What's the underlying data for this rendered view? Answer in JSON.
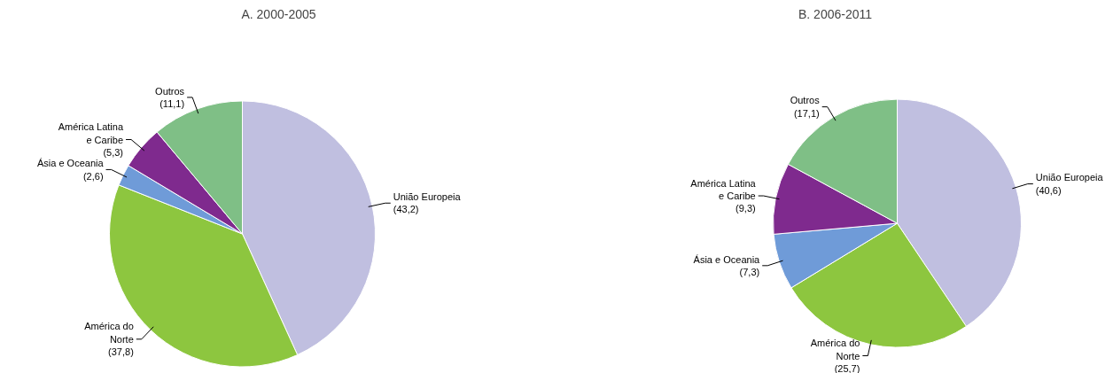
{
  "chart_data": [
    {
      "type": "pie",
      "title": "A. 2000-2005",
      "categories": [
        "União Europeia",
        "América do Norte",
        "Ásia e Oceania",
        "América Latina e Caribe",
        "Outros"
      ],
      "values": [
        43.2,
        37.8,
        2.6,
        5.3,
        11.1
      ],
      "value_labels": [
        "(43,2)",
        "(37,8)",
        "(2,6)",
        "(5,3)",
        "(11,1)"
      ],
      "colors": [
        "#c0bfe0",
        "#8dc63f",
        "#6f9bd8",
        "#7f2a8e",
        "#7fbf86"
      ]
    },
    {
      "type": "pie",
      "title": "B. 2006-2011",
      "categories": [
        "União Europeia",
        "América do Norte",
        "Ásia e Oceania",
        "América Latina e Caribe",
        "Outros"
      ],
      "values": [
        40.6,
        25.7,
        7.3,
        9.3,
        17.1
      ],
      "value_labels": [
        "(40,6)",
        "(25,7)",
        "(7,3)",
        "(9,3)",
        "(17,1)"
      ],
      "colors": [
        "#c0bfe0",
        "#8dc63f",
        "#6f9bd8",
        "#7f2a8e",
        "#7fbf86"
      ]
    }
  ]
}
